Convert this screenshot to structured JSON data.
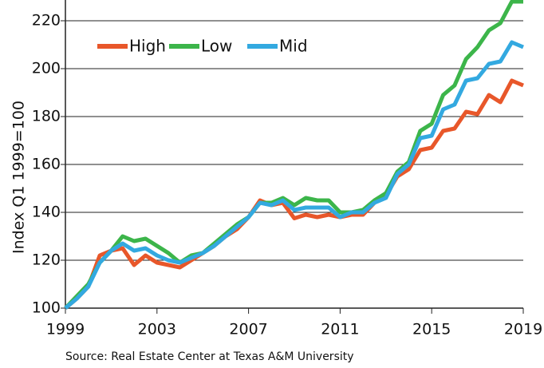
{
  "chart_data": {
    "type": "line",
    "y_label": "Index Q1 1999=100",
    "source": "Source: Real Estate Center at Texas A&M University",
    "x": [
      1999,
      1999.5,
      2000,
      2000.5,
      2001,
      2001.5,
      2002,
      2002.5,
      2003,
      2003.5,
      2004,
      2004.5,
      2005,
      2005.5,
      2006,
      2006.5,
      2007,
      2007.5,
      2008,
      2008.5,
      2009,
      2009.5,
      2010,
      2010.5,
      2011,
      2011.5,
      2012,
      2012.5,
      2013,
      2013.5,
      2014,
      2014.5,
      2015,
      2015.5,
      2016,
      2016.5,
      2017,
      2017.5,
      2018,
      2018.5,
      2019
    ],
    "series": [
      {
        "name": "High",
        "color": "#e8572a",
        "values": [
          100,
          104,
          109,
          122,
          124,
          125,
          118,
          122,
          119,
          118,
          117,
          120,
          123,
          126,
          130,
          133,
          138,
          145,
          143,
          144,
          137.5,
          139,
          138,
          139,
          138,
          139,
          139,
          144,
          147,
          155,
          158,
          166,
          167,
          174,
          175,
          182,
          181,
          189,
          186,
          195,
          193
        ]
      },
      {
        "name": "Low",
        "color": "#3cb54a",
        "values": [
          100,
          105,
          110,
          119,
          124,
          130,
          128,
          129,
          126,
          123,
          119,
          122,
          123,
          127,
          131,
          135,
          138,
          144,
          144,
          146,
          143,
          146,
          145,
          145,
          140,
          140,
          141,
          145,
          148,
          157,
          161,
          174,
          177,
          189,
          193,
          204,
          209,
          216,
          219,
          228,
          228
        ]
      },
      {
        "name": "Mid",
        "color": "#33a9e0",
        "values": [
          100,
          104,
          109,
          119,
          124,
          127,
          124,
          125,
          122,
          120,
          119,
          121,
          123,
          126,
          130,
          134,
          138,
          144,
          143,
          145,
          141,
          142,
          142,
          142,
          138,
          140,
          140,
          144,
          146,
          156,
          160,
          171,
          172,
          183,
          185,
          195,
          196,
          202,
          203,
          211,
          209
        ]
      }
    ],
    "xlim": [
      1999,
      2019
    ],
    "xticks": [
      1999,
      2003,
      2007,
      2011,
      2015,
      2019
    ],
    "ylim": [
      100,
      229
    ],
    "yticks": [
      100,
      120,
      140,
      160,
      180,
      200,
      220
    ],
    "grid": true,
    "legend": "top-left"
  }
}
